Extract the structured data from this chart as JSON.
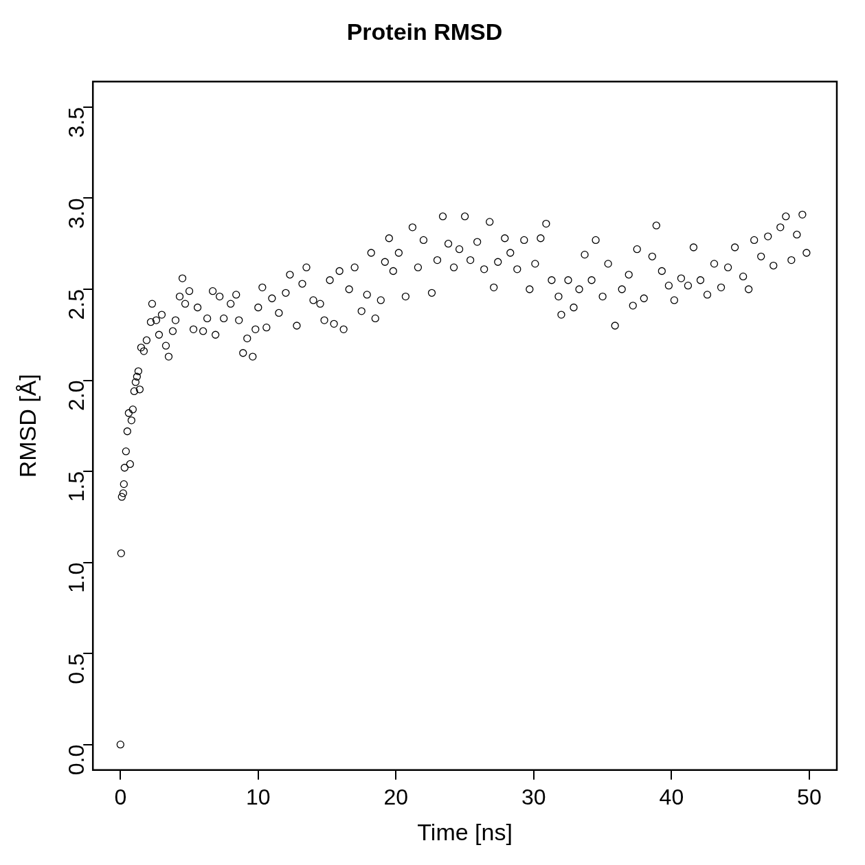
{
  "chart_data": {
    "type": "scatter",
    "title": "Protein RMSD",
    "xlabel": "Time [ns]",
    "ylabel": "RMSD [Å]",
    "x": [
      0,
      0.05,
      0.1,
      0.2,
      0.25,
      0.3,
      0.4,
      0.5,
      0.6,
      0.7,
      0.8,
      0.9,
      1.0,
      1.1,
      1.2,
      1.3,
      1.4,
      1.5,
      1.7,
      1.9,
      2.2,
      2.3,
      2.6,
      2.8,
      3.0,
      3.3,
      3.5,
      3.8,
      4.0,
      4.3,
      4.5,
      4.7,
      5.0,
      5.3,
      5.6,
      6.0,
      6.3,
      6.7,
      6.9,
      7.2,
      7.5,
      8.0,
      8.4,
      8.6,
      8.9,
      9.2,
      9.6,
      9.8,
      10.0,
      10.3,
      10.6,
      11.0,
      11.5,
      12.0,
      12.3,
      12.8,
      13.2,
      13.5,
      14.0,
      14.5,
      14.8,
      15.2,
      15.5,
      15.9,
      16.2,
      16.6,
      17.0,
      17.5,
      17.9,
      18.2,
      18.5,
      18.9,
      19.2,
      19.5,
      19.8,
      20.2,
      20.7,
      21.2,
      21.6,
      22.0,
      22.6,
      23.0,
      23.4,
      23.8,
      24.2,
      24.6,
      25.0,
      25.4,
      25.9,
      26.4,
      26.8,
      27.1,
      27.4,
      27.9,
      28.3,
      28.8,
      29.3,
      29.7,
      30.1,
      30.5,
      30.9,
      31.3,
      31.8,
      32.0,
      32.5,
      32.9,
      33.3,
      33.7,
      34.2,
      34.5,
      35.0,
      35.4,
      35.9,
      36.4,
      36.9,
      37.2,
      37.5,
      38.0,
      38.6,
      38.9,
      39.3,
      39.8,
      40.2,
      40.7,
      41.2,
      41.6,
      42.1,
      42.6,
      43.1,
      43.6,
      44.1,
      44.6,
      45.2,
      45.6,
      46.0,
      46.5,
      47.0,
      47.4,
      47.9,
      48.3,
      48.7,
      49.1,
      49.5,
      49.8
    ],
    "series": [
      {
        "color": "#000000",
        "values": [
          0.0,
          1.05,
          1.36,
          1.38,
          1.43,
          1.52,
          1.61,
          1.72,
          1.82,
          1.54,
          1.78,
          1.84,
          1.94,
          1.99,
          2.02,
          2.05,
          1.95,
          2.18,
          2.16,
          2.22,
          2.32,
          2.42,
          2.33,
          2.25,
          2.36,
          2.19,
          2.13,
          2.27,
          2.33,
          2.46,
          2.56,
          2.42,
          2.49,
          2.28,
          2.4,
          2.27,
          2.34,
          2.49,
          2.25,
          2.46,
          2.34,
          2.42,
          2.47,
          2.33,
          2.15,
          2.23,
          2.13,
          2.28,
          2.4,
          2.51,
          2.29,
          2.45,
          2.37,
          2.48,
          2.58,
          2.3,
          2.53,
          2.62,
          2.44,
          2.42,
          2.33,
          2.55,
          2.31,
          2.6,
          2.28,
          2.5,
          2.62,
          2.38,
          2.47,
          2.7,
          2.34,
          2.44,
          2.65,
          2.78,
          2.6,
          2.7,
          2.46,
          2.84,
          2.62,
          2.77,
          2.48,
          2.66,
          2.9,
          2.75,
          2.62,
          2.72,
          2.9,
          2.66,
          2.76,
          2.61,
          2.87,
          2.51,
          2.65,
          2.78,
          2.7,
          2.61,
          2.77,
          2.5,
          2.64,
          2.78,
          2.86,
          2.55,
          2.46,
          2.36,
          2.55,
          2.4,
          2.5,
          2.69,
          2.55,
          2.77,
          2.46,
          2.64,
          2.3,
          2.5,
          2.58,
          2.41,
          2.72,
          2.45,
          2.68,
          2.85,
          2.6,
          2.52,
          2.44,
          2.56,
          2.52,
          2.73,
          2.55,
          2.47,
          2.64,
          2.51,
          2.62,
          2.73,
          2.57,
          2.5,
          2.77,
          2.68,
          2.79,
          2.63,
          2.84,
          2.9,
          2.66,
          2.8,
          2.91,
          2.7
        ]
      }
    ],
    "xlim": [
      -2,
      52
    ],
    "xticks": [
      0,
      10,
      20,
      30,
      40,
      50
    ],
    "ylim": [
      -0.14,
      3.64
    ],
    "yticks": [
      {
        "value": 0,
        "label": "0.0"
      },
      0.5,
      {
        "value": 1,
        "label": "1.0"
      },
      1.5,
      {
        "value": 2,
        "label": "2.0"
      },
      2.5,
      {
        "value": 3,
        "label": "3.0"
      },
      3.5
    ],
    "marker": "circle",
    "grid": false,
    "legend": false
  }
}
